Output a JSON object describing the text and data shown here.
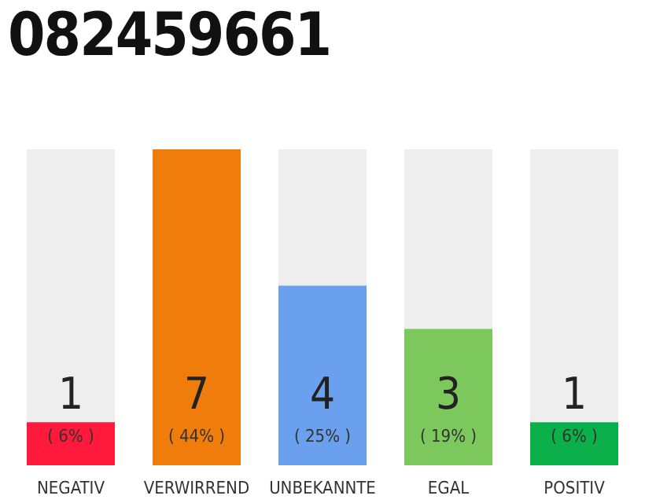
{
  "chart_data": {
    "type": "bar",
    "title": "082459661",
    "categories": [
      "NEGATIV",
      "VERWIRREND",
      "UNBEKANNTE",
      "EGAL",
      "POSITIV"
    ],
    "values": [
      6,
      44,
      25,
      19,
      6
    ],
    "colors": [
      "#ff1a3c",
      "#f07c0c",
      "#6aa0ee",
      "#7dc85c",
      "#0bb04a"
    ],
    "value_labels": [
      "( 6% )",
      "( 44% )",
      "( 25% )",
      "( 19% )",
      "( 6% )"
    ],
    "annotations": [
      "1",
      "7",
      "4",
      "3",
      "1"
    ]
  }
}
